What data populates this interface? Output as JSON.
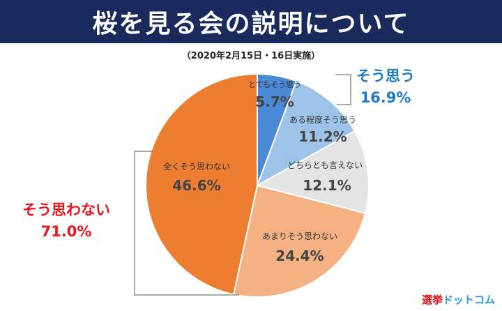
{
  "header": {
    "title": "桜を見る会の説明について",
    "subtitle": "（2020年2月15日・16日実施）"
  },
  "colors": {
    "title_bg": "#1b2a5c",
    "agree": "#1f7bc1",
    "disagree": "#e8151b"
  },
  "chart_data": {
    "type": "pie",
    "start": "12 o'clock, clockwise",
    "slices": [
      {
        "label": "とてもそう思う",
        "value": 5.7,
        "value_label": "5.7%",
        "color": "#4a89d4"
      },
      {
        "label": "ある程度そう思う",
        "value": 11.2,
        "value_label": "11.2%",
        "color": "#9dc3e9"
      },
      {
        "label": "どちらとも言えない",
        "value": 12.1,
        "value_label": "12.1%",
        "color": "#e4e4e4"
      },
      {
        "label": "あまりそう思わない",
        "value": 24.4,
        "value_label": "24.4%",
        "color": "#f4b183"
      },
      {
        "label": "全くそう思わない",
        "value": 46.6,
        "value_label": "46.6%",
        "color": "#ed7d31"
      }
    ],
    "groups": [
      {
        "label": "そう思う",
        "value_label": "16.9%",
        "color": "#1f7bc1",
        "slices": [
          0,
          1
        ]
      },
      {
        "label": "そう思わない",
        "value_label": "71.0%",
        "color": "#e8151b",
        "slices": [
          3,
          4
        ]
      }
    ]
  },
  "logo": {
    "text_1": "選挙",
    "text_2": "ドットコム"
  }
}
